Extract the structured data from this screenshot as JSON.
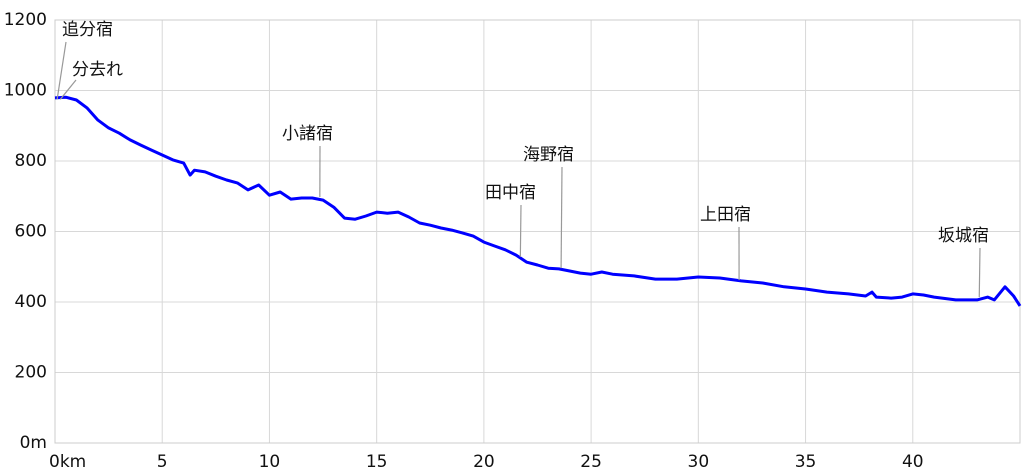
{
  "chart_data": {
    "type": "line",
    "x": [
      0,
      0.5,
      1,
      1.5,
      2,
      2.5,
      3,
      3.5,
      4,
      4.5,
      5,
      5.5,
      6,
      6.3,
      6.5,
      7,
      7.5,
      8,
      8.5,
      9,
      9.5,
      10,
      10.5,
      11,
      11.5,
      12,
      12.5,
      13,
      13.5,
      14,
      14.5,
      15,
      15.5,
      16,
      16.5,
      17,
      17.5,
      18,
      18.5,
      19,
      19.5,
      20,
      20.5,
      21,
      21.5,
      22,
      22.5,
      23,
      23.5,
      24,
      24.5,
      25,
      25.5,
      26,
      27,
      28,
      29,
      30,
      31,
      32,
      33,
      34,
      35,
      36,
      37,
      37.8,
      38.1,
      38.3,
      39,
      39.5,
      40,
      40.5,
      41,
      42,
      43,
      43.5,
      43.8,
      44.3,
      44.7,
      45
    ],
    "values": [
      979,
      981,
      973,
      950,
      916,
      894,
      879,
      860,
      845,
      831,
      817,
      803,
      794,
      760,
      774,
      769,
      757,
      746,
      738,
      718,
      732,
      703,
      712,
      692,
      695,
      695,
      689,
      669,
      638,
      635,
      644,
      655,
      652,
      655,
      641,
      624,
      618,
      610,
      604,
      596,
      587,
      570,
      559,
      548,
      533,
      513,
      505,
      496,
      494,
      488,
      482,
      479,
      485,
      479,
      474,
      465,
      465,
      471,
      468,
      460,
      454,
      443,
      437,
      428,
      423,
      417,
      428,
      414,
      411,
      414,
      423,
      420,
      414,
      406,
      406,
      414,
      406,
      443,
      417,
      389
    ],
    "color": "#0000ff",
    "xlim": [
      0,
      45
    ],
    "ylim": [
      0,
      1200
    ],
    "xticks": [
      {
        "value": 0,
        "label": "0km"
      },
      5,
      10,
      15,
      20,
      25,
      30,
      35,
      40
    ],
    "yticks": [
      {
        "value": 0,
        "label": "0m"
      },
      200,
      400,
      600,
      800,
      1000,
      1200
    ],
    "grid": true,
    "annotations": [
      {
        "text": "追分宿",
        "x": 0.1,
        "y": 975
      },
      {
        "text": "分去れ",
        "x": 0.25,
        "y": 975
      },
      {
        "text": "小諸宿",
        "x": 12.35,
        "y": 698
      },
      {
        "text": "田中宿",
        "x": 21.7,
        "y": 528
      },
      {
        "text": "海野宿",
        "x": 23.6,
        "y": 496
      },
      {
        "text": "上田宿",
        "x": 31.9,
        "y": 462
      },
      {
        "text": "坂城宿",
        "x": 43.1,
        "y": 414
      }
    ]
  }
}
